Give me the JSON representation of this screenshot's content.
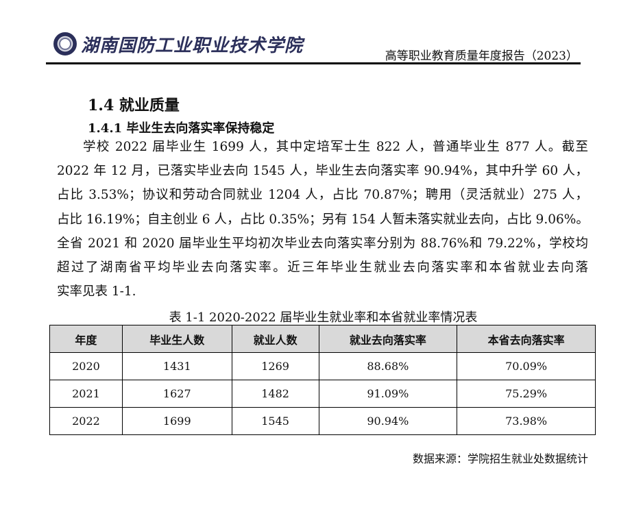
{
  "header": {
    "school_name": "湖南国防工业职业技术学院",
    "report_title": "高等职业教育质量年度报告（2023）"
  },
  "section": {
    "title": "1.4 就业质量",
    "subtitle": "1.4.1 毕业生去向落实率保持稳定"
  },
  "paragraph_lines": [
    "学校 2022 届毕业生 1699 人，其中定培军士生 822 人，普通毕业生 877 人。截至",
    "2022 年 12 月，已落实毕业去向 1545 人，毕业生去向落实率 90.94%，其中升学 60 人，",
    "占比 3.53%；协议和劳动合同就业 1204 人，占比 70.87%；聘用（灵活就业）275 人，",
    "占比 16.19%；自主创业 6 人，占比 0.35%；另有 154 人暂未落实就业去向，占比 9.06%。",
    "全省 2021 和 2020 届毕业生平均初次毕业去向落实率分别为 88.76%和 79.22%，学校均",
    "超过了湖南省平均毕业去向落实率。近三年毕业生就业去向落实率和本省就业去向落",
    "实率见表 1-1."
  ],
  "table": {
    "caption": "表 1-1   2020-2022 届毕业生就业率和本省就业率情况表",
    "headers": [
      "年度",
      "毕业生人数",
      "就业人数",
      "就业去向落实率",
      "本省去向落实率"
    ],
    "rows": [
      [
        "2020",
        "1431",
        "1269",
        "88.68%",
        "70.09%"
      ],
      [
        "2021",
        "1627",
        "1482",
        "91.09%",
        "75.29%"
      ],
      [
        "2022",
        "1699",
        "1545",
        "90.94%",
        "73.98%"
      ]
    ]
  },
  "source": "数据来源：学院招生就业处数据统计"
}
